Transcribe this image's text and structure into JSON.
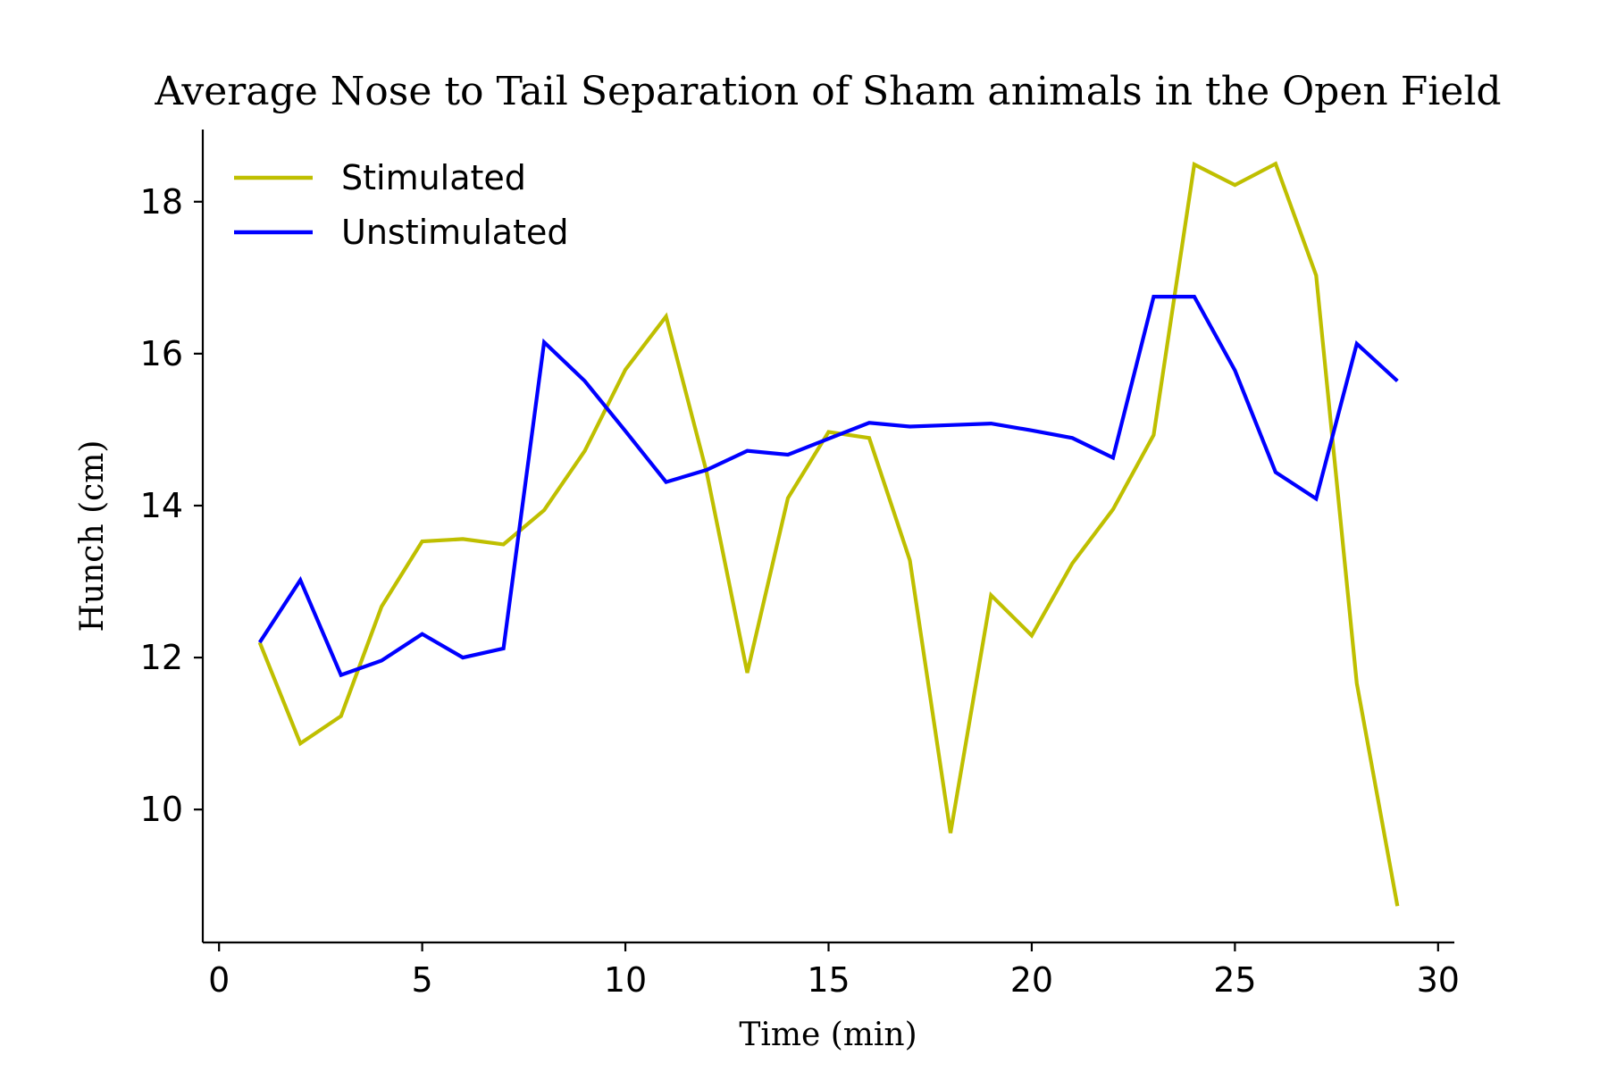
{
  "chart_data": {
    "type": "line",
    "title": "Average Nose to Tail Separation of Sham animals in the Open Field",
    "xlabel": "Time (min)",
    "ylabel": "Hunch (cm)",
    "xlim": [
      -0.4,
      30.4
    ],
    "ylim": [
      8.25,
      18.95
    ],
    "xticks": [
      0,
      5,
      10,
      15,
      20,
      25,
      30
    ],
    "xtick_labels": [
      "0",
      "5",
      "10",
      "15",
      "20",
      "25",
      "30"
    ],
    "yticks": [
      10,
      12,
      14,
      16,
      18
    ],
    "ytick_labels": [
      "10",
      "12",
      "14",
      "16",
      "18"
    ],
    "grid": false,
    "legend_position": "upper-left",
    "x": [
      1,
      2,
      3,
      4,
      5,
      6,
      7,
      8,
      9,
      10,
      11,
      12,
      13,
      14,
      15,
      16,
      17,
      18,
      19,
      20,
      21,
      22,
      23,
      24,
      25,
      26,
      27,
      28,
      29
    ],
    "series": [
      {
        "name": "Stimulated",
        "color": "#bfbf00",
        "values": [
          12.2,
          10.87,
          11.23,
          12.67,
          13.53,
          13.56,
          13.49,
          13.94,
          14.72,
          15.79,
          16.49,
          14.44,
          11.8,
          14.1,
          14.97,
          14.89,
          13.28,
          9.69,
          12.82,
          12.29,
          13.24,
          13.95,
          14.93,
          18.49,
          18.22,
          18.5,
          17.03,
          11.66,
          8.73
        ]
      },
      {
        "name": "Unstimulated",
        "color": "#0000ff",
        "values": [
          12.2,
          13.02,
          11.77,
          11.96,
          12.31,
          12.0,
          12.12,
          16.15,
          15.64,
          14.98,
          14.31,
          14.47,
          14.72,
          14.67,
          14.88,
          15.09,
          15.04,
          15.06,
          15.08,
          14.99,
          14.89,
          14.63,
          16.75,
          16.75,
          15.78,
          14.44,
          14.09,
          16.13,
          15.64
        ]
      }
    ]
  }
}
